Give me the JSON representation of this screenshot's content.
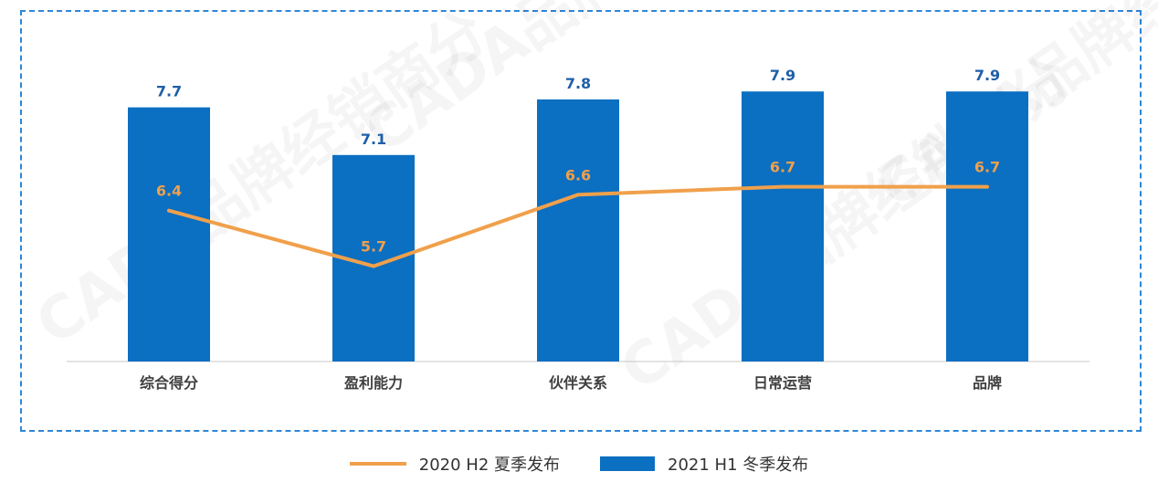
{
  "colors": {
    "bar": "#0b6fc2",
    "line": "#f0a04b",
    "bar_label": "#1f5fa8",
    "frame": "#2e86d8"
  },
  "watermark": "CADA品牌经销商分",
  "chart_data": {
    "type": "bar",
    "categories": [
      "综合得分",
      "盈利能力",
      "伙伴关系",
      "日常运营",
      "品牌"
    ],
    "series": [
      {
        "name": "2021 H1 冬季发布",
        "type": "bar",
        "values": [
          7.7,
          7.1,
          7.8,
          7.9,
          7.9
        ]
      },
      {
        "name": "2020 H2 夏季发布",
        "type": "line",
        "values": [
          6.4,
          5.7,
          6.6,
          6.7,
          6.7
        ]
      }
    ],
    "ylim": [
      4.5,
      8.5
    ],
    "grid": false,
    "legend_position": "bottom"
  },
  "legend": {
    "line_label": "2020 H2 夏季发布",
    "bar_label": "2021 H1 冬季发布"
  }
}
